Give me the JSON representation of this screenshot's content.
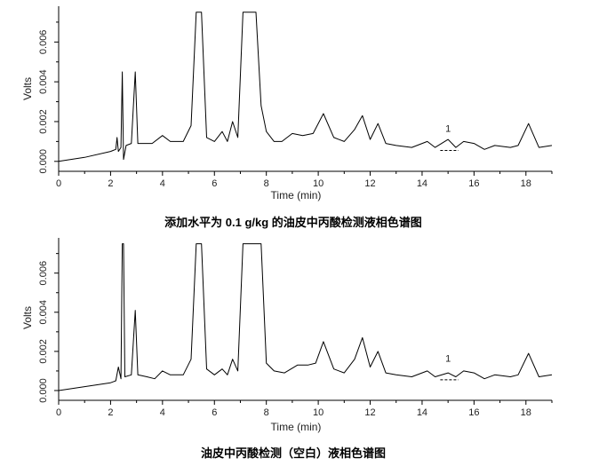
{
  "chart_data": [
    {
      "type": "line",
      "caption": "添加水平为 0.1 g/kg 的油皮中丙酸检测液相色谱图",
      "xlabel": "Time (min)",
      "ylabel": "Volts",
      "xlim": [
        0,
        19
      ],
      "ylim": [
        -0.0005,
        0.0078
      ],
      "x_ticks": [
        "0",
        "2",
        "4",
        "6",
        "8",
        "10",
        "12",
        "14",
        "16",
        "18"
      ],
      "y_ticks": [
        "0.000",
        "0.002",
        "0.004",
        "0.006"
      ],
      "peak_label": {
        "text": "1",
        "x": 15.0,
        "y": 0.0013
      },
      "series": [
        {
          "points": [
            [
              0,
              0.0
            ],
            [
              1.0,
              0.0002
            ],
            [
              2.0,
              0.0005
            ],
            [
              2.2,
              0.0006
            ],
            [
              2.25,
              0.0012
            ],
            [
              2.3,
              0.0005
            ],
            [
              2.4,
              0.0007
            ],
            [
              2.45,
              0.0045
            ],
            [
              2.5,
              0.0001
            ],
            [
              2.6,
              0.0008
            ],
            [
              2.8,
              0.0009
            ],
            [
              2.95,
              0.0045
            ],
            [
              3.05,
              0.0009
            ],
            [
              3.3,
              0.0009
            ],
            [
              3.6,
              0.0009
            ],
            [
              4.0,
              0.0013
            ],
            [
              4.3,
              0.001
            ],
            [
              4.8,
              0.001
            ],
            [
              5.1,
              0.0018
            ],
            [
              5.3,
              0.0075
            ],
            [
              5.5,
              0.0075
            ],
            [
              5.7,
              0.0012
            ],
            [
              6.0,
              0.001
            ],
            [
              6.3,
              0.0015
            ],
            [
              6.5,
              0.001
            ],
            [
              6.7,
              0.002
            ],
            [
              6.9,
              0.0012
            ],
            [
              7.1,
              0.0075
            ],
            [
              7.6,
              0.0075
            ],
            [
              7.8,
              0.0028
            ],
            [
              8.0,
              0.0015
            ],
            [
              8.3,
              0.001
            ],
            [
              8.6,
              0.001
            ],
            [
              9.0,
              0.0014
            ],
            [
              9.4,
              0.0013
            ],
            [
              9.8,
              0.0014
            ],
            [
              10.2,
              0.0024
            ],
            [
              10.6,
              0.0012
            ],
            [
              11.0,
              0.001
            ],
            [
              11.4,
              0.0016
            ],
            [
              11.7,
              0.0023
            ],
            [
              12.0,
              0.0011
            ],
            [
              12.3,
              0.0019
            ],
            [
              12.6,
              0.0009
            ],
            [
              13.0,
              0.0008
            ],
            [
              13.6,
              0.0007
            ],
            [
              14.2,
              0.001
            ],
            [
              14.5,
              0.0007
            ],
            [
              15.0,
              0.0011
            ],
            [
              15.3,
              0.0007
            ],
            [
              15.6,
              0.001
            ],
            [
              16.0,
              0.0009
            ],
            [
              16.4,
              0.0006
            ],
            [
              16.8,
              0.0008
            ],
            [
              17.4,
              0.0007
            ],
            [
              17.7,
              0.0008
            ],
            [
              18.1,
              0.0019
            ],
            [
              18.5,
              0.0007
            ],
            [
              19.0,
              0.0008
            ]
          ]
        }
      ]
    },
    {
      "type": "line",
      "caption": "油皮中丙酸检测（空白）液相色谱图",
      "xlabel": "Time (min)",
      "ylabel": "Volts",
      "xlim": [
        0,
        19
      ],
      "ylim": [
        -0.0005,
        0.0078
      ],
      "x_ticks": [
        "0",
        "2",
        "4",
        "6",
        "8",
        "10",
        "12",
        "14",
        "16",
        "18"
      ],
      "y_ticks": [
        "0.000",
        "0.002",
        "0.004",
        "0.006"
      ],
      "peak_label": {
        "text": "1",
        "x": 15.0,
        "y": 0.0013
      },
      "series": [
        {
          "points": [
            [
              0,
              0.0
            ],
            [
              1.0,
              0.0002
            ],
            [
              2.0,
              0.0004
            ],
            [
              2.2,
              0.0005
            ],
            [
              2.3,
              0.0012
            ],
            [
              2.4,
              0.0006
            ],
            [
              2.45,
              0.0075
            ],
            [
              2.5,
              0.0075
            ],
            [
              2.55,
              0.0007
            ],
            [
              2.8,
              0.0008
            ],
            [
              2.95,
              0.0041
            ],
            [
              3.05,
              0.0008
            ],
            [
              3.4,
              0.0007
            ],
            [
              3.7,
              0.0006
            ],
            [
              4.0,
              0.001
            ],
            [
              4.3,
              0.0008
            ],
            [
              4.8,
              0.0008
            ],
            [
              5.1,
              0.0016
            ],
            [
              5.3,
              0.0075
            ],
            [
              5.5,
              0.0075
            ],
            [
              5.7,
              0.0011
            ],
            [
              6.0,
              0.0008
            ],
            [
              6.3,
              0.0011
            ],
            [
              6.5,
              0.0008
            ],
            [
              6.7,
              0.0016
            ],
            [
              6.9,
              0.001
            ],
            [
              7.1,
              0.0075
            ],
            [
              7.8,
              0.0075
            ],
            [
              8.0,
              0.0014
            ],
            [
              8.3,
              0.001
            ],
            [
              8.7,
              0.0009
            ],
            [
              9.2,
              0.0013
            ],
            [
              9.6,
              0.0013
            ],
            [
              9.9,
              0.0014
            ],
            [
              10.2,
              0.0025
            ],
            [
              10.6,
              0.0011
            ],
            [
              11.0,
              0.0009
            ],
            [
              11.4,
              0.0016
            ],
            [
              11.7,
              0.0027
            ],
            [
              12.0,
              0.0012
            ],
            [
              12.3,
              0.002
            ],
            [
              12.6,
              0.0009
            ],
            [
              13.0,
              0.0008
            ],
            [
              13.6,
              0.0007
            ],
            [
              14.2,
              0.001
            ],
            [
              14.5,
              0.0007
            ],
            [
              15.0,
              0.0009
            ],
            [
              15.3,
              0.0007
            ],
            [
              15.6,
              0.001
            ],
            [
              16.0,
              0.0009
            ],
            [
              16.4,
              0.0006
            ],
            [
              16.8,
              0.0008
            ],
            [
              17.4,
              0.0007
            ],
            [
              17.7,
              0.0008
            ],
            [
              18.1,
              0.0019
            ],
            [
              18.5,
              0.0007
            ],
            [
              19.0,
              0.0008
            ]
          ]
        }
      ]
    }
  ]
}
